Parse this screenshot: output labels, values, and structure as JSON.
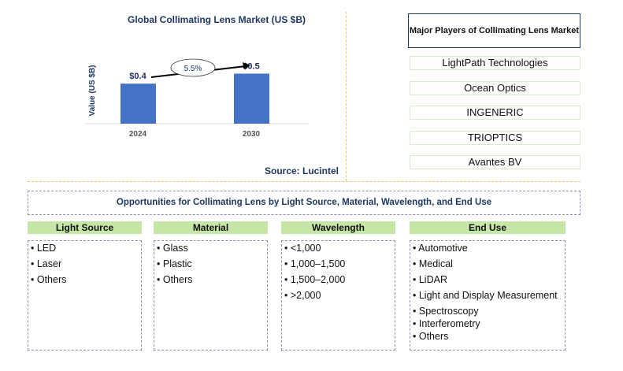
{
  "chart_data": {
    "type": "bar",
    "title": "Global Collimating Lens Market (US $B)",
    "ylabel": "Value (US $B)",
    "categories": [
      "2024",
      "2030"
    ],
    "values": [
      0.4,
      0.5
    ],
    "data_labels": [
      "$0.4",
      "$0.5"
    ],
    "cagr_label": "5.5%",
    "bar_color": "#4472c4",
    "grid": false,
    "source": "Source: Lucintel"
  },
  "players": {
    "title": "Major Players of Collimating Lens Market",
    "items": [
      "LightPath Technologies",
      "Ocean Optics",
      "INGENERIC",
      "TRIOPTICS",
      "Avantes BV"
    ]
  },
  "opportunities": {
    "title": "Opportunities for Collimating Lens by Light Source, Material, Wavelength, and End Use",
    "columns": [
      {
        "header": "Light Source",
        "items": [
          "LED",
          "Laser",
          "Others"
        ]
      },
      {
        "header": "Material",
        "items": [
          "Glass",
          "Plastic",
          "Others"
        ]
      },
      {
        "header": "Wavelength",
        "items": [
          "<1,000",
          "1,000–1,500",
          "1,500–2,000",
          ">2,000"
        ]
      },
      {
        "header": "End Use",
        "items": [
          "Automotive",
          "Medical",
          "LiDAR",
          "Light and Display Measurement",
          "Spectroscopy",
          "Interferometry",
          "Others"
        ]
      }
    ]
  }
}
